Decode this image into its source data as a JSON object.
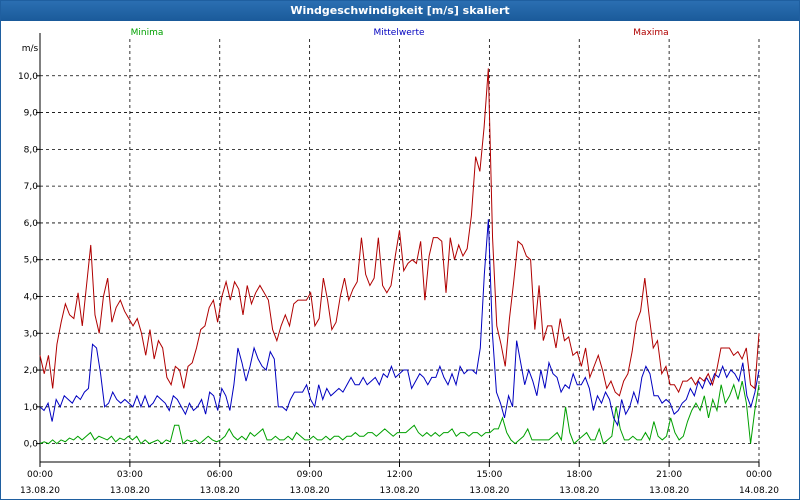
{
  "window": {
    "title": "Windgeschwindigkeit [m/s] skaliert"
  },
  "chart_data": {
    "type": "line",
    "unit_label": "m/s",
    "ylim": [
      -0.5,
      11
    ],
    "y_ticks": [
      "0,0",
      "1,0",
      "2,0",
      "3,0",
      "4,0",
      "5,0",
      "6,0",
      "7,0",
      "8,0",
      "9,0",
      "10,0"
    ],
    "y_tick_values": [
      0,
      1,
      2,
      3,
      4,
      5,
      6,
      7,
      8,
      9,
      10
    ],
    "xlim": [
      0,
      24
    ],
    "x_ticks": [
      {
        "x": 0,
        "time": "00:00",
        "date": "13.08.20"
      },
      {
        "x": 3,
        "time": "03:00",
        "date": "13.08.20"
      },
      {
        "x": 6,
        "time": "06:00",
        "date": "13.08.20"
      },
      {
        "x": 9,
        "time": "09:00",
        "date": "13.08.20"
      },
      {
        "x": 12,
        "time": "12:00",
        "date": "13.08.20"
      },
      {
        "x": 15,
        "time": "15:00",
        "date": "13.08.20"
      },
      {
        "x": 18,
        "time": "18:00",
        "date": "13.08.20"
      },
      {
        "x": 21,
        "time": "21:00",
        "date": "13.08.20"
      },
      {
        "x": 24,
        "time": "00:00",
        "date": "14.08.20"
      }
    ],
    "grid": true,
    "series": [
      {
        "name": "Minima",
        "color": "#00a000",
        "values": [
          0.0,
          0.05,
          0.0,
          0.1,
          0.0,
          0.1,
          0.05,
          0.15,
          0.1,
          0.2,
          0.1,
          0.2,
          0.3,
          0.1,
          0.2,
          0.15,
          0.1,
          0.2,
          0.05,
          0.15,
          0.1,
          0.2,
          0.1,
          0.2,
          0.0,
          0.1,
          0.0,
          0.05,
          0.1,
          0.0,
          0.1,
          0.05,
          0.5,
          0.5,
          0.0,
          0.1,
          0.05,
          0.1,
          0.0,
          0.1,
          0.2,
          0.1,
          0.05,
          0.1,
          0.2,
          0.4,
          0.2,
          0.1,
          0.2,
          0.1,
          0.3,
          0.2,
          0.3,
          0.4,
          0.1,
          0.1,
          0.2,
          0.1,
          0.1,
          0.2,
          0.1,
          0.3,
          0.2,
          0.1,
          0.1,
          0.2,
          0.1,
          0.1,
          0.2,
          0.1,
          0.2,
          0.2,
          0.1,
          0.2,
          0.2,
          0.3,
          0.2,
          0.2,
          0.3,
          0.3,
          0.2,
          0.3,
          0.4,
          0.3,
          0.2,
          0.3,
          0.3,
          0.3,
          0.4,
          0.5,
          0.3,
          0.2,
          0.3,
          0.2,
          0.3,
          0.2,
          0.3,
          0.3,
          0.4,
          0.2,
          0.3,
          0.3,
          0.2,
          0.3,
          0.3,
          0.2,
          0.3,
          0.3,
          0.4,
          0.4,
          0.7,
          0.3,
          0.1,
          0.0,
          0.1,
          0.2,
          0.4,
          0.1,
          0.1,
          0.1,
          0.1,
          0.1,
          0.2,
          0.3,
          0.1,
          1.0,
          0.3,
          0.0,
          0.1,
          0.2,
          0.3,
          0.1,
          0.1,
          0.4,
          0.0,
          0.1,
          0.2,
          1.0,
          0.4,
          0.1,
          0.1,
          0.2,
          0.1,
          0.1,
          0.3,
          0.1,
          0.6,
          0.2,
          0.1,
          0.2,
          0.7,
          0.3,
          0.1,
          0.2,
          0.6,
          0.9,
          1.1,
          0.9,
          1.3,
          0.7,
          1.2,
          0.9,
          1.6,
          1.1,
          1.3,
          1.6,
          1.2,
          1.7,
          1.1,
          0.0,
          0.9,
          1.6
        ]
      },
      {
        "name": "Mittelwerte",
        "color": "#0000c0",
        "values": [
          1.0,
          0.9,
          1.1,
          0.6,
          1.2,
          1.0,
          1.3,
          1.2,
          1.1,
          1.3,
          1.2,
          1.4,
          1.5,
          2.7,
          2.6,
          1.9,
          1.0,
          1.1,
          1.4,
          1.2,
          1.1,
          1.2,
          1.1,
          1.0,
          1.3,
          1.0,
          1.3,
          1.0,
          1.1,
          1.3,
          1.2,
          1.1,
          0.9,
          1.3,
          1.2,
          1.0,
          0.8,
          1.1,
          0.9,
          1.0,
          1.2,
          0.8,
          1.4,
          1.3,
          0.9,
          1.5,
          1.3,
          0.9,
          1.6,
          2.6,
          2.2,
          1.7,
          2.1,
          2.6,
          2.3,
          2.1,
          2.0,
          2.5,
          2.3,
          1.0,
          1.0,
          0.9,
          1.2,
          1.4,
          1.4,
          1.4,
          1.6,
          1.2,
          1.0,
          1.6,
          1.2,
          1.5,
          1.3,
          1.4,
          1.5,
          1.4,
          1.6,
          1.8,
          1.6,
          1.6,
          1.8,
          1.6,
          1.7,
          1.8,
          1.6,
          1.9,
          1.8,
          2.1,
          1.8,
          1.9,
          2.0,
          2.0,
          1.5,
          1.7,
          1.9,
          1.8,
          1.6,
          1.8,
          1.8,
          2.1,
          1.8,
          1.6,
          1.9,
          1.6,
          2.1,
          1.9,
          2.0,
          2.0,
          1.9,
          2.6,
          4.6,
          6.1,
          3.0,
          1.4,
          1.1,
          0.7,
          1.3,
          1.0,
          2.8,
          2.2,
          1.6,
          2.0,
          1.7,
          1.3,
          2.0,
          1.5,
          2.2,
          1.9,
          1.8,
          1.4,
          1.6,
          1.5,
          1.9,
          1.6,
          1.6,
          1.8,
          1.5,
          0.9,
          1.3,
          1.1,
          1.4,
          1.2,
          0.7,
          0.5,
          1.2,
          0.8,
          1.0,
          1.4,
          1.1,
          1.8,
          2.1,
          1.9,
          1.3,
          1.3,
          1.1,
          1.2,
          1.1,
          0.8,
          0.9,
          1.1,
          1.2,
          1.5,
          1.3,
          1.7,
          1.5,
          1.8,
          1.6,
          1.9,
          1.8,
          2.1,
          1.8,
          2.0,
          1.9,
          1.7,
          2.2,
          1.3,
          1.0,
          1.4,
          2.0
        ]
      },
      {
        "name": "Maxima",
        "color": "#b00000",
        "values": [
          2.4,
          1.9,
          2.4,
          1.5,
          2.7,
          3.3,
          3.8,
          3.5,
          3.4,
          4.1,
          3.2,
          4.3,
          5.4,
          3.5,
          3.0,
          4.0,
          4.5,
          3.3,
          3.7,
          3.9,
          3.6,
          3.4,
          3.2,
          3.4,
          3.0,
          2.4,
          3.1,
          2.3,
          2.8,
          2.6,
          1.8,
          1.6,
          2.1,
          2.0,
          1.5,
          2.1,
          2.2,
          2.6,
          3.1,
          3.2,
          3.7,
          3.9,
          3.3,
          4.0,
          4.4,
          3.9,
          4.4,
          4.2,
          3.5,
          4.3,
          3.8,
          4.1,
          4.3,
          4.1,
          3.9,
          3.1,
          2.8,
          3.2,
          3.5,
          3.2,
          3.8,
          3.9,
          3.9,
          3.9,
          4.1,
          3.2,
          3.4,
          4.5,
          3.9,
          3.1,
          3.3,
          4.0,
          4.5,
          3.9,
          4.2,
          4.4,
          5.6,
          4.6,
          4.3,
          4.5,
          5.6,
          4.3,
          4.1,
          4.3,
          5.1,
          5.8,
          4.7,
          4.9,
          5.0,
          4.9,
          5.5,
          3.9,
          5.1,
          5.6,
          5.6,
          5.5,
          4.1,
          5.6,
          5.0,
          5.4,
          5.1,
          5.3,
          6.2,
          7.8,
          7.4,
          8.6,
          10.2,
          5.6,
          3.2,
          2.7,
          2.1,
          3.4,
          4.4,
          5.5,
          5.4,
          5.1,
          5.0,
          3.1,
          4.3,
          2.8,
          3.2,
          3.2,
          2.6,
          3.4,
          2.8,
          2.9,
          2.4,
          2.5,
          2.1,
          2.6,
          1.8,
          2.1,
          2.4,
          2.0,
          1.5,
          1.7,
          1.4,
          1.3,
          1.7,
          1.9,
          2.5,
          3.3,
          3.6,
          4.5,
          3.5,
          2.6,
          2.8,
          1.9,
          2.1,
          1.6,
          1.6,
          1.4,
          1.7,
          1.7,
          1.8,
          1.6,
          1.8,
          1.7,
          1.9,
          1.6,
          2.0,
          2.6,
          2.6,
          2.6,
          2.4,
          2.5,
          2.3,
          2.6,
          1.6,
          1.5,
          3.0
        ]
      }
    ]
  }
}
